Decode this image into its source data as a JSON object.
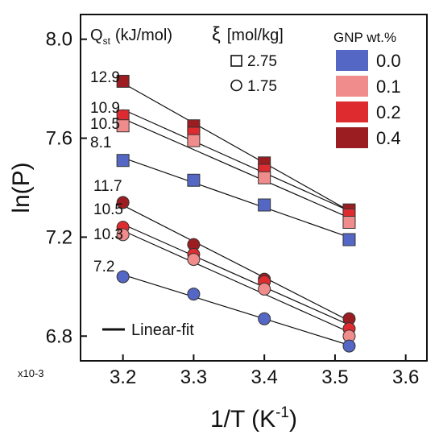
{
  "chart_data": {
    "type": "scatter",
    "x_unit_multiplier": "x10-3",
    "xlabel": "1/T (K",
    "xlabel_sup": "-1",
    "xlabel_close": ")",
    "ylabel": "ln(P)",
    "xlim": [
      3.14,
      3.63
    ],
    "ylim": [
      6.7,
      8.1
    ],
    "x_ticks": [
      3.2,
      3.3,
      3.4,
      3.5,
      3.6
    ],
    "x_tick_labels": [
      "3.2",
      "3.3",
      "3.4",
      "3.5",
      "3.6"
    ],
    "y_ticks": [
      6.8,
      7.2,
      7.6,
      8.0
    ],
    "y_tick_labels": [
      "6.8",
      "7.2",
      "7.6",
      "8.0"
    ],
    "legend_gnp": {
      "title": "GNP wt.%",
      "entries": [
        {
          "label": "0.0",
          "color": "#5567c4"
        },
        {
          "label": "0.1",
          "color": "#f08c8c"
        },
        {
          "label": "0.2",
          "color": "#de2b30"
        },
        {
          "label": "0.4",
          "color": "#9c1d21"
        }
      ]
    },
    "legend_loading": {
      "title_symbol": "ξ",
      "title_unit": "[mol/kg]",
      "entries": [
        {
          "label": "2.75",
          "marker": "square"
        },
        {
          "label": "1.75",
          "marker": "circle"
        }
      ]
    },
    "qst_header": {
      "main": "Q",
      "sub": "st",
      "unit": "(kJ/mol)"
    },
    "fit_legend_label": "Linear-fit",
    "x": [
      3.2,
      3.3,
      3.4,
      3.52
    ],
    "series": [
      {
        "loading": "2.75",
        "gnp": "0.4",
        "marker": "square",
        "color": "#9c1d21",
        "qst": "12.9",
        "values": [
          7.83,
          7.65,
          7.5,
          7.31
        ]
      },
      {
        "loading": "2.75",
        "gnp": "0.2",
        "marker": "square",
        "color": "#de2b30",
        "qst": "10.9",
        "values": [
          7.69,
          7.62,
          7.47,
          7.29
        ]
      },
      {
        "loading": "2.75",
        "gnp": "0.1",
        "marker": "square",
        "color": "#f08c8c",
        "qst": "10.5",
        "values": [
          7.65,
          7.59,
          7.44,
          7.26
        ]
      },
      {
        "loading": "2.75",
        "gnp": "0.0",
        "marker": "square",
        "color": "#5567c4",
        "qst": "8.1",
        "values": [
          7.51,
          7.43,
          7.33,
          7.19
        ]
      },
      {
        "loading": "1.75",
        "gnp": "0.4",
        "marker": "circle",
        "color": "#9c1d21",
        "qst": "11.7",
        "values": [
          7.34,
          7.17,
          7.03,
          6.87
        ]
      },
      {
        "loading": "1.75",
        "gnp": "0.2",
        "marker": "circle",
        "color": "#de2b30",
        "qst": "10.5",
        "values": [
          7.24,
          7.13,
          7.02,
          6.83
        ]
      },
      {
        "loading": "1.75",
        "gnp": "0.1",
        "marker": "circle",
        "color": "#f08c8c",
        "qst": "10.3",
        "values": [
          7.21,
          7.11,
          6.99,
          6.8
        ]
      },
      {
        "loading": "1.75",
        "gnp": "0.0",
        "marker": "circle",
        "color": "#5567c4",
        "qst": "7.2",
        "values": [
          7.04,
          6.97,
          6.87,
          6.76
        ]
      }
    ]
  }
}
